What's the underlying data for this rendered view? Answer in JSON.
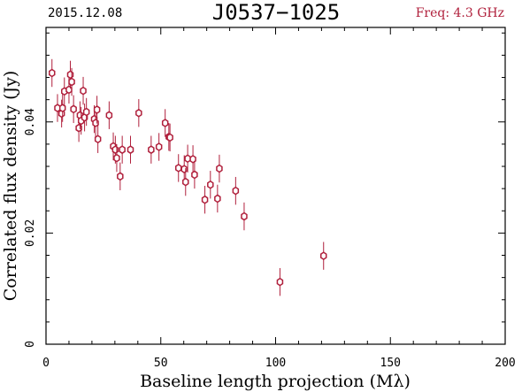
{
  "header": {
    "date": "2015.12.08",
    "source": "J0537−1025",
    "frequency": "Freq: 4.3 GHz",
    "frequency_color": "#b0203c"
  },
  "chart_data": {
    "type": "scatter",
    "title": "J0537−1025",
    "xlabel": "Baseline length projection (Mλ)",
    "ylabel": "Correlated flux density (Jy)",
    "xlim": [
      0,
      200
    ],
    "ylim": [
      0,
      0.057
    ],
    "xticks": [
      0,
      50,
      100,
      150,
      200
    ],
    "xtick_labels": [
      "0",
      "50",
      "100",
      "150",
      "200"
    ],
    "yticks": [
      0,
      0.02,
      0.04
    ],
    "ytick_labels": [
      "0",
      "0.02",
      "0.04"
    ],
    "grid": false,
    "marker_color": "#b0203c",
    "series": [
      {
        "x": [
          2.6,
          5.0,
          6.8,
          7.2,
          8.0,
          10.0,
          10.6,
          11.2,
          12.0,
          14.3,
          14.8,
          15.3,
          16.2,
          16.8,
          17.6,
          21.0,
          21.6,
          22.2,
          22.6,
          27.5,
          29.3,
          30.2,
          30.8,
          32.3,
          33.2,
          36.8,
          40.4,
          45.8,
          49.2,
          51.9,
          53.5,
          54.0,
          57.7,
          60.2,
          60.8,
          61.7,
          64.0,
          64.7,
          69.2,
          71.6,
          74.7,
          75.5,
          82.6,
          86.3,
          101.9,
          120.9
        ],
        "y": [
          0.0488,
          0.0425,
          0.0415,
          0.0425,
          0.0455,
          0.0458,
          0.0485,
          0.0472,
          0.0423,
          0.0389,
          0.0412,
          0.0402,
          0.0456,
          0.0408,
          0.0418,
          0.0405,
          0.0398,
          0.0422,
          0.0369,
          0.0412,
          0.0356,
          0.035,
          0.0335,
          0.0302,
          0.035,
          0.035,
          0.0416,
          0.035,
          0.0355,
          0.0398,
          0.0373,
          0.0372,
          0.0317,
          0.0315,
          0.0292,
          0.0334,
          0.0333,
          0.0305,
          0.026,
          0.0287,
          0.0262,
          0.0316,
          0.0276,
          0.023,
          0.0112,
          0.0159
        ],
        "yerr": 0.0025
      }
    ]
  }
}
